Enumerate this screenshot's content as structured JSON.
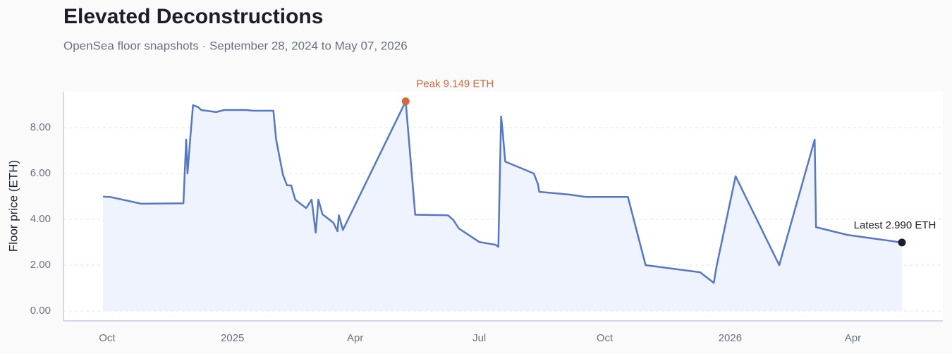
{
  "chart_data": {
    "type": "line",
    "title": "Elevated Deconstructions",
    "subtitle": "OpenSea floor snapshots · September 28, 2024 to May 07, 2026",
    "y_label": "Floor price (ETH)",
    "x": [
      "2024-09-28",
      "2024-10-03",
      "2024-10-26",
      "2024-11-26",
      "2024-11-28",
      "2024-11-29",
      "2024-12-01",
      "2024-12-03",
      "2024-12-07",
      "2024-12-09",
      "2024-12-20",
      "2024-12-26",
      "2025-01-11",
      "2025-01-16",
      "2025-01-31",
      "2025-02-02",
      "2025-02-07",
      "2025-02-10",
      "2025-02-13",
      "2025-02-16",
      "2025-02-24",
      "2025-02-28",
      "2025-03-03",
      "2025-03-05",
      "2025-03-08",
      "2025-03-16",
      "2025-03-19",
      "2025-03-20",
      "2025-03-23",
      "2025-05-08",
      "2025-05-15",
      "2025-06-08",
      "2025-06-12",
      "2025-06-16",
      "2025-07-01",
      "2025-07-13",
      "2025-07-15",
      "2025-07-17",
      "2025-07-18",
      "2025-07-20",
      "2025-08-10",
      "2025-08-13",
      "2025-08-14",
      "2025-09-05",
      "2025-09-17",
      "2025-10-18",
      "2025-10-31",
      "2025-12-10",
      "2025-12-20",
      "2025-12-22",
      "2026-01-05",
      "2026-02-06",
      "2026-03-04",
      "2026-03-05",
      "2026-03-28",
      "2026-05-07"
    ],
    "series": [
      {
        "name": "Floor price",
        "color": "#5677c2",
        "fill": "#eef3fd",
        "values": [
          4.99,
          4.98,
          4.68,
          4.7,
          7.48,
          6.0,
          7.54,
          8.98,
          8.89,
          8.77,
          8.68,
          8.77,
          8.77,
          8.74,
          8.74,
          7.48,
          5.94,
          5.48,
          5.48,
          4.86,
          4.49,
          4.86,
          3.42,
          4.86,
          4.22,
          3.85,
          3.48,
          4.18,
          3.54,
          9.149,
          4.2,
          4.18,
          3.97,
          3.6,
          3.01,
          2.89,
          2.8,
          8.49,
          7.94,
          6.52,
          6.0,
          5.54,
          5.2,
          5.08,
          4.98,
          4.98,
          2.0,
          1.69,
          1.23,
          1.94,
          5.88,
          2.0,
          7.48,
          3.66,
          3.32,
          2.99
        ]
      }
    ],
    "annotations": [
      {
        "text": "Peak 9.149 ETH",
        "x": "2025-05-08",
        "y": 9.149,
        "color": "#d2693f"
      },
      {
        "text": "Latest 2.990 ETH",
        "x": "2026-05-07",
        "y": 2.99,
        "color": "#1c1f2b"
      }
    ],
    "xlim": [
      "2024-08-30",
      "2026-06-06"
    ],
    "xticks": [
      {
        "value": "2024-10-01",
        "label": "Oct"
      },
      {
        "value": "2025-01-01",
        "label": "2025"
      },
      {
        "value": "2025-04-01",
        "label": "Apr"
      },
      {
        "value": "2025-07-01",
        "label": "Jul"
      },
      {
        "value": "2025-10-01",
        "label": "Oct"
      },
      {
        "value": "2026-01-01",
        "label": "2026"
      },
      {
        "value": "2026-04-01",
        "label": "Apr"
      }
    ],
    "ylim": [
      -0.43,
      9.57
    ],
    "yticks": [
      {
        "value": 0,
        "label": "0.00"
      },
      {
        "value": 2,
        "label": "2.00"
      },
      {
        "value": 4,
        "label": "4.00"
      },
      {
        "value": 6,
        "label": "6.00"
      },
      {
        "value": 8,
        "label": "8.00"
      }
    ],
    "grid": true
  }
}
